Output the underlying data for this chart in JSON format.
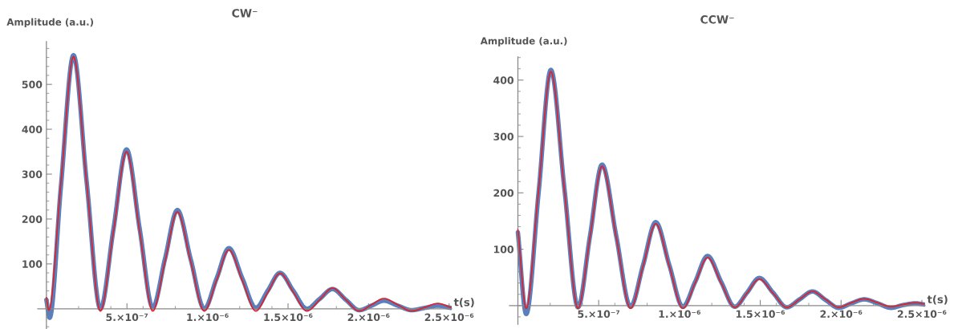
{
  "chart_data": [
    {
      "type": "line",
      "title": "CW⁻",
      "xlabel": "t(s)",
      "ylabel": "Amplitude (a.u.)",
      "xlim": [
        -5.4e-08,
        2.516e-06
      ],
      "ylim": [
        -45,
        595
      ],
      "xticks": [
        {
          "value": 5e-07,
          "label": "5.×10⁻⁷"
        },
        {
          "value": 1e-06,
          "label": "1.×10⁻⁶"
        },
        {
          "value": 1.5e-06,
          "label": "1.5×10⁻⁶"
        },
        {
          "value": 2e-06,
          "label": "2.×10⁻⁶"
        },
        {
          "value": 2.5e-06,
          "label": "2.5×10⁻⁶"
        }
      ],
      "yticks": [
        100,
        200,
        300,
        400,
        500
      ],
      "series": [
        {
          "color": "#5b7fbb",
          "x": [
            0,
            2e-08,
            9e-08,
            1.68e-07,
            2.5e-07,
            3.35e-07,
            4.16e-07,
            4.975e-07,
            5.79e-07,
            6.6e-07,
            7.36e-07,
            8.13e-07,
            8.96e-07,
            9.8e-07,
            1.056e-06,
            1.133e-06,
            1.216e-06,
            1.3e-06,
            1.375e-06,
            1.45e-06,
            1.533e-06,
            1.617e-06,
            1.696e-06,
            1.776e-06,
            1.859e-06,
            1.942e-06,
            2.018e-06,
            2.095e-06,
            2.181e-06,
            2.267e-06,
            2.348e-06,
            2.43e-06,
            2.51e-06
          ],
          "values": [
            20,
            -20,
            272,
            565,
            282,
            0,
            177,
            355,
            178,
            3,
            111,
            220,
            110,
            0,
            67,
            135,
            68,
            2,
            41,
            80,
            40,
            0,
            22,
            44,
            20,
            -3,
            7,
            18,
            7,
            -3,
            2,
            7,
            2
          ]
        },
        {
          "color": "#e41f26",
          "x": [
            0,
            1.5e-08,
            9e-08,
            1.68e-07,
            2.5e-07,
            3.35e-07,
            4.16e-07,
            4.975e-07,
            5.79e-07,
            6.6e-07,
            7.36e-07,
            8.13e-07,
            8.96e-07,
            9.8e-07,
            1.056e-06,
            1.133e-06,
            1.216e-06,
            1.3e-06,
            1.375e-06,
            1.45e-06,
            1.533e-06,
            1.617e-06,
            1.696e-06,
            1.776e-06,
            1.859e-06,
            1.942e-06,
            2.018e-06,
            2.095e-06,
            2.181e-06,
            2.267e-06,
            2.348e-06,
            2.43e-06,
            2.51e-06
          ],
          "values": [
            25,
            -3,
            280,
            562,
            280,
            -5,
            172,
            350,
            172,
            -5,
            105,
            216,
            105,
            -5,
            63,
            131,
            63,
            -5,
            37,
            79,
            37,
            -5,
            20,
            46,
            20,
            -5,
            9,
            23,
            9,
            -5,
            3,
            12,
            3
          ]
        }
      ]
    },
    {
      "type": "line",
      "title": "CCW⁻",
      "xlabel": "t(s)",
      "ylabel": "Amplitude (a.u.)",
      "xlim": [
        -5.2e-08,
        2.52e-06
      ],
      "ylim": [
        -33,
        441
      ],
      "xticks": [
        {
          "value": 5e-07,
          "label": "5.×10⁻⁷"
        },
        {
          "value": 1e-06,
          "label": "1.×10⁻⁶"
        },
        {
          "value": 1.5e-06,
          "label": "1.5×10⁻⁶"
        },
        {
          "value": 2e-06,
          "label": "2.×10⁻⁶"
        },
        {
          "value": 2.5e-06,
          "label": "2.5×10⁻⁶"
        }
      ],
      "yticks": [
        100,
        200,
        300,
        400
      ],
      "series": [
        {
          "color": "#5b7fbb",
          "x": [
            0,
            5.15e-08,
            1.28e-07,
            2.04e-07,
            2.88e-07,
            3.72e-07,
            4.46e-07,
            5.21e-07,
            6.09e-07,
            6.97e-07,
            7.75e-07,
            8.53e-07,
            9.37e-07,
            1.021e-06,
            1.097e-06,
            1.174e-06,
            1.258e-06,
            1.342e-06,
            1.418e-06,
            1.494e-06,
            1.579e-06,
            1.664e-06,
            1.743e-06,
            1.823e-06,
            1.904e-06,
            1.985e-06,
            2.064e-06,
            2.143e-06,
            2.226e-06,
            2.309e-06,
            2.385e-06,
            2.462e-06,
            2.513e-06
          ],
          "values": [
            130,
            -15,
            200,
            418,
            207,
            -3,
            123,
            250,
            123,
            -2,
            72,
            148,
            72,
            -2,
            42,
            88,
            42,
            -2,
            23,
            49,
            23,
            -3,
            11,
            25,
            10,
            -4,
            4,
            11,
            4,
            -4,
            1,
            4,
            2
          ]
        },
        {
          "color": "#e41f26",
          "x": [
            0,
            5.15e-08,
            1.28e-07,
            2.04e-07,
            2.88e-07,
            3.72e-07,
            4.46e-07,
            5.21e-07,
            6.09e-07,
            6.97e-07,
            7.75e-07,
            8.53e-07,
            9.37e-07,
            1.021e-06,
            1.097e-06,
            1.174e-06,
            1.258e-06,
            1.342e-06,
            1.418e-06,
            1.494e-06,
            1.579e-06,
            1.664e-06,
            1.743e-06,
            1.823e-06,
            1.904e-06,
            1.985e-06,
            2.064e-06,
            2.143e-06,
            2.226e-06,
            2.309e-06,
            2.385e-06,
            2.462e-06,
            2.513e-06
          ],
          "values": [
            135,
            -5,
            205,
            415,
            205,
            -5,
            121,
            247,
            121,
            -5,
            70,
            145,
            70,
            -5,
            40,
            85,
            40,
            -3,
            22,
            47,
            22,
            -3,
            11,
            25,
            11,
            -3,
            5,
            12,
            5,
            -2,
            2,
            5,
            3
          ]
        }
      ]
    }
  ]
}
